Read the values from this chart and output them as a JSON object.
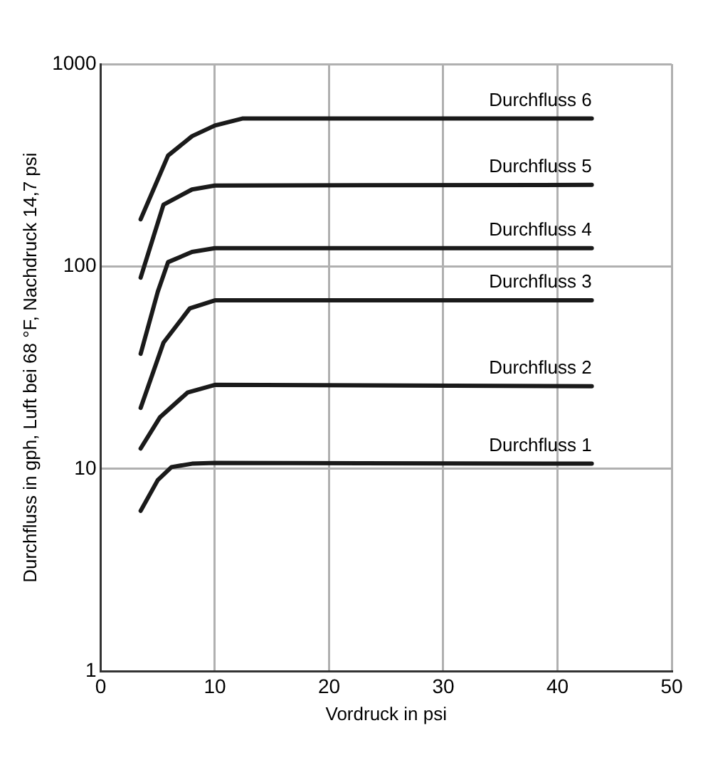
{
  "chart_data": {
    "type": "line",
    "xlabel": "Vordruck in psi",
    "ylabel": "Durchfluss in gph, Luft bei 68 °F, Nachdruck 14,7 psi",
    "log": "y",
    "grid": true,
    "legend": false,
    "marker": "none",
    "line_style": "solid",
    "xlim": [
      0,
      50
    ],
    "xticks": [
      0,
      10,
      20,
      30,
      40,
      50
    ],
    "ylim": [
      1,
      1000
    ],
    "yticks": [
      1,
      10,
      100,
      1000
    ],
    "series": [
      {
        "name": "Durchfluss 1",
        "color": "#1a1a1a",
        "x": [
          3.5,
          5,
          6.2,
          8,
          10,
          43
        ],
        "values": [
          6.2,
          8.8,
          10.2,
          10.6,
          10.7,
          10.6
        ]
      },
      {
        "name": "Durchfluss 2",
        "color": "#1a1a1a",
        "x": [
          3.5,
          5.2,
          7.6,
          10,
          43
        ],
        "values": [
          12.6,
          18,
          23.8,
          26,
          25.6
        ]
      },
      {
        "name": "Durchfluss 3",
        "color": "#1a1a1a",
        "x": [
          3.5,
          5.5,
          7.8,
          10,
          12,
          43
        ],
        "values": [
          20,
          42,
          62,
          68,
          68,
          68
        ]
      },
      {
        "name": "Durchfluss 4",
        "color": "#1a1a1a",
        "x": [
          3.5,
          5,
          5.9,
          8,
          10,
          12,
          43
        ],
        "values": [
          37,
          75,
          105,
          118,
          123,
          123,
          123
        ]
      },
      {
        "name": "Durchfluss 5",
        "color": "#1a1a1a",
        "x": [
          3.5,
          5.5,
          8,
          10,
          43
        ],
        "values": [
          88,
          202,
          240,
          251,
          253
        ]
      },
      {
        "name": "Durchfluss 6",
        "color": "#1a1a1a",
        "x": [
          3.5,
          5.9,
          8,
          10,
          12.4,
          43
        ],
        "values": [
          171,
          353,
          440,
          497,
          538,
          538
        ]
      }
    ]
  }
}
